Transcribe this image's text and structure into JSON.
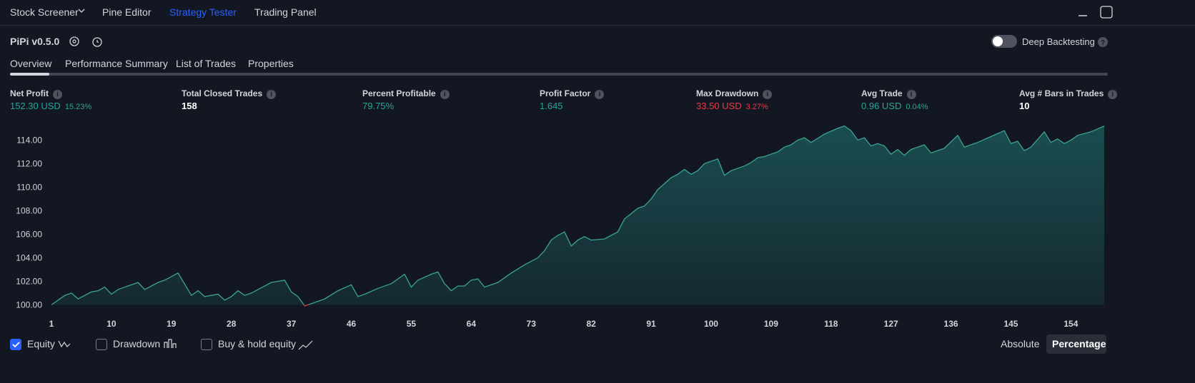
{
  "top_tabs": [
    "Stock Screener",
    "Pine Editor",
    "Strategy Tester",
    "Trading Panel"
  ],
  "strategy": {
    "name": "PiPi v0.5.0",
    "deep_backtesting": "Deep Backtesting"
  },
  "tabs": [
    "Overview",
    "Performance Summary",
    "List of Trades",
    "Properties"
  ],
  "metrics": [
    {
      "label": "Net Profit",
      "value": "152.30 USD",
      "percent": "15.23%",
      "tone": "positive"
    },
    {
      "label": "Total Closed Trades",
      "value": "158",
      "tone": "neutral"
    },
    {
      "label": "Percent Profitable",
      "value": "79.75%",
      "tone": "positive"
    },
    {
      "label": "Profit Factor",
      "value": "1.645",
      "tone": "positive"
    },
    {
      "label": "Max Drawdown",
      "value": "33.50 USD",
      "percent": "3.27%",
      "tone": "negative"
    },
    {
      "label": "Avg Trade",
      "value": "0.96 USD",
      "percent": "0.04%",
      "tone": "positive"
    },
    {
      "label": "Avg # Bars in Trades",
      "value": "10",
      "tone": "neutral"
    }
  ],
  "chart_data": {
    "type": "area",
    "x": [
      1,
      3,
      4,
      5,
      7,
      8,
      9,
      10,
      11,
      13,
      14,
      15,
      16,
      17,
      18,
      19,
      20,
      22,
      23,
      24,
      26,
      27,
      28,
      29,
      30,
      31,
      32,
      34,
      36,
      37,
      38,
      39,
      40,
      42,
      44,
      46,
      47,
      48,
      50,
      52,
      54,
      55,
      56,
      58,
      59,
      60,
      61,
      62,
      63,
      64,
      65,
      66,
      68,
      70,
      72,
      74,
      75,
      76,
      77,
      78,
      79,
      80,
      81,
      82,
      84,
      86,
      87,
      89,
      90,
      91,
      92,
      94,
      95,
      96,
      97,
      98,
      99,
      101,
      102,
      103,
      105,
      106,
      107,
      108,
      110,
      111,
      112,
      113,
      114,
      115,
      117,
      119,
      120,
      121,
      122,
      123,
      124,
      125,
      126,
      127,
      128,
      129,
      130,
      132,
      133,
      135,
      137,
      138,
      140,
      142,
      144,
      145,
      146,
      147,
      148,
      150,
      151,
      152,
      153,
      154,
      155,
      157,
      159
    ],
    "values": [
      100.0,
      100.8,
      101.0,
      100.5,
      101.1,
      101.2,
      101.5,
      100.9,
      101.3,
      101.7,
      101.9,
      101.3,
      101.6,
      101.9,
      102.1,
      102.4,
      102.7,
      100.8,
      101.2,
      100.7,
      100.9,
      100.4,
      100.7,
      101.2,
      100.8,
      101.0,
      101.3,
      101.9,
      102.1,
      101.1,
      100.7,
      99.9,
      100.1,
      100.5,
      101.2,
      101.7,
      100.7,
      100.9,
      101.4,
      101.8,
      102.6,
      101.5,
      102.1,
      102.6,
      102.8,
      101.8,
      101.2,
      101.6,
      101.6,
      102.1,
      102.2,
      101.5,
      101.9,
      102.7,
      103.4,
      104.0,
      104.6,
      105.5,
      105.9,
      106.2,
      105.0,
      105.5,
      105.8,
      105.5,
      105.6,
      106.2,
      107.3,
      108.2,
      108.4,
      109.0,
      109.8,
      110.8,
      111.1,
      111.5,
      111.1,
      111.4,
      112.0,
      112.4,
      111.0,
      111.4,
      111.8,
      112.1,
      112.5,
      112.6,
      113.0,
      113.4,
      113.6,
      114.0,
      114.2,
      113.8,
      114.5,
      115.0,
      115.2,
      114.8,
      114.0,
      114.2,
      113.5,
      113.7,
      113.5,
      112.8,
      113.2,
      112.7,
      113.2,
      113.6,
      112.9,
      113.3,
      114.4,
      113.4,
      113.8,
      114.3,
      114.8,
      113.7,
      113.9,
      113.1,
      113.4,
      114.7,
      113.8,
      114.1,
      113.7,
      114.0,
      114.4,
      114.7,
      115.2
    ],
    "xlim": [
      1,
      159
    ],
    "ylim": [
      99.6,
      115.6
    ],
    "xticks": [
      1,
      10,
      19,
      28,
      37,
      46,
      55,
      64,
      73,
      82,
      91,
      100,
      109,
      118,
      127,
      136,
      145,
      154
    ],
    "yticks": [
      {
        "value": 100,
        "label": "100.00"
      },
      {
        "value": 102,
        "label": "102.00"
      },
      {
        "value": 104,
        "label": "104.00"
      },
      {
        "value": 106,
        "label": "106.00"
      },
      {
        "value": 108,
        "label": "108.00"
      },
      {
        "value": 110,
        "label": "110.00"
      },
      {
        "value": 112,
        "label": "112.00"
      },
      {
        "value": 114,
        "label": "114.00"
      }
    ],
    "baseline": 100,
    "color": "#3aa391",
    "negative_color": "#f23645"
  },
  "legend_options": [
    {
      "label": "Equity",
      "checked": true
    },
    {
      "label": "Drawdown",
      "checked": false
    },
    {
      "label": "Buy & hold equity",
      "checked": false
    }
  ],
  "modes": [
    "Absolute",
    "Percentage"
  ]
}
